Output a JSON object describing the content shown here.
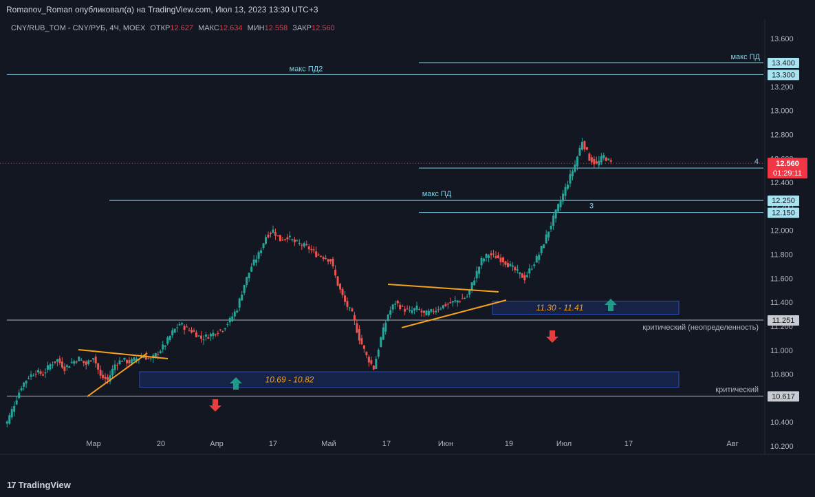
{
  "header": {
    "publisher": "Romanov_Roman опубликовал(а) на TradingView.com, Июл 13, 2023 13:30 UTC+3"
  },
  "legend": {
    "symbol": "CNY/RUB_TOM - CNY/РУБ, 4Ч, MOEX",
    "open_label": "ОТКР",
    "open": "12.627",
    "high_label": "МАКС",
    "high": "12.634",
    "low_label": "МИН",
    "low": "12.558",
    "close_label": "ЗАКР",
    "close": "12.560"
  },
  "footer": {
    "brand": "TradingView"
  },
  "colors": {
    "background": "#131722",
    "up": "#26a69a",
    "down": "#ef5350",
    "hline": "#7fd3e6",
    "gray_line": "#b2b5be",
    "trend": "#f7a21b",
    "zone": "#1e3a8a",
    "price_label": "#f23645"
  },
  "chart_data": {
    "type": "candlestick",
    "y_ticks": [
      "13.600",
      "13.400",
      "13.200",
      "13.000",
      "12.800",
      "12.600",
      "12.400",
      "12.200",
      "12.000",
      "11.800",
      "11.600",
      "11.400",
      "11.200",
      "11.000",
      "10.800",
      "10.600",
      "10.400",
      "10.200"
    ],
    "x_ticks": [
      "Мар",
      "20",
      "Апр",
      "17",
      "Май",
      "17",
      "Июн",
      "19",
      "Июл",
      "17",
      "Авг"
    ],
    "close_price": "12.560",
    "countdown": "01:29:11",
    "horizontal_levels": [
      {
        "price": 13.4,
        "label": "13.400",
        "text": "макс ПД",
        "style": "cyan"
      },
      {
        "price": 13.3,
        "label": "13.300",
        "text": "макс ПД2",
        "style": "cyan"
      },
      {
        "price": 12.52,
        "label": "12.520",
        "text": "4",
        "style": "cyan"
      },
      {
        "price": 12.25,
        "label": "12.250",
        "text": "макс ПД",
        "style": "cyan"
      },
      {
        "price": 12.15,
        "label": "12.150",
        "text": "3",
        "style": "cyan"
      },
      {
        "price": 11.251,
        "label": "11.251",
        "text": "критический (неопределенность)",
        "style": "gray"
      },
      {
        "price": 10.617,
        "label": "10.617",
        "text": "критический",
        "style": "gray"
      }
    ],
    "zones": [
      {
        "from": 10.69,
        "to": 10.82,
        "label": "10.69 - 10.82"
      },
      {
        "from": 11.3,
        "to": 11.41,
        "label": "11.30 - 11.41"
      }
    ],
    "close_series_approx": [
      10.4,
      10.55,
      10.7,
      10.78,
      10.82,
      10.8,
      10.88,
      10.92,
      10.85,
      10.9,
      10.93,
      10.88,
      10.95,
      10.78,
      10.75,
      10.88,
      10.92,
      10.9,
      10.93,
      10.95,
      10.92,
      10.98,
      11.05,
      11.15,
      11.22,
      11.18,
      11.15,
      11.1,
      11.12,
      11.15,
      11.18,
      11.25,
      11.35,
      11.55,
      11.7,
      11.8,
      11.95,
      12.0,
      11.92,
      11.95,
      11.9,
      11.88,
      11.85,
      11.8,
      11.78,
      11.75,
      11.55,
      11.4,
      11.3,
      11.1,
      10.95,
      10.85,
      11.1,
      11.3,
      11.4,
      11.35,
      11.32,
      11.35,
      11.3,
      11.32,
      11.35,
      11.38,
      11.4,
      11.42,
      11.45,
      11.6,
      11.75,
      11.8,
      11.78,
      11.75,
      11.7,
      11.65,
      11.6,
      11.7,
      11.8,
      11.95,
      12.1,
      12.25,
      12.4,
      12.55,
      12.75,
      12.6,
      12.55,
      12.62,
      12.56
    ]
  }
}
